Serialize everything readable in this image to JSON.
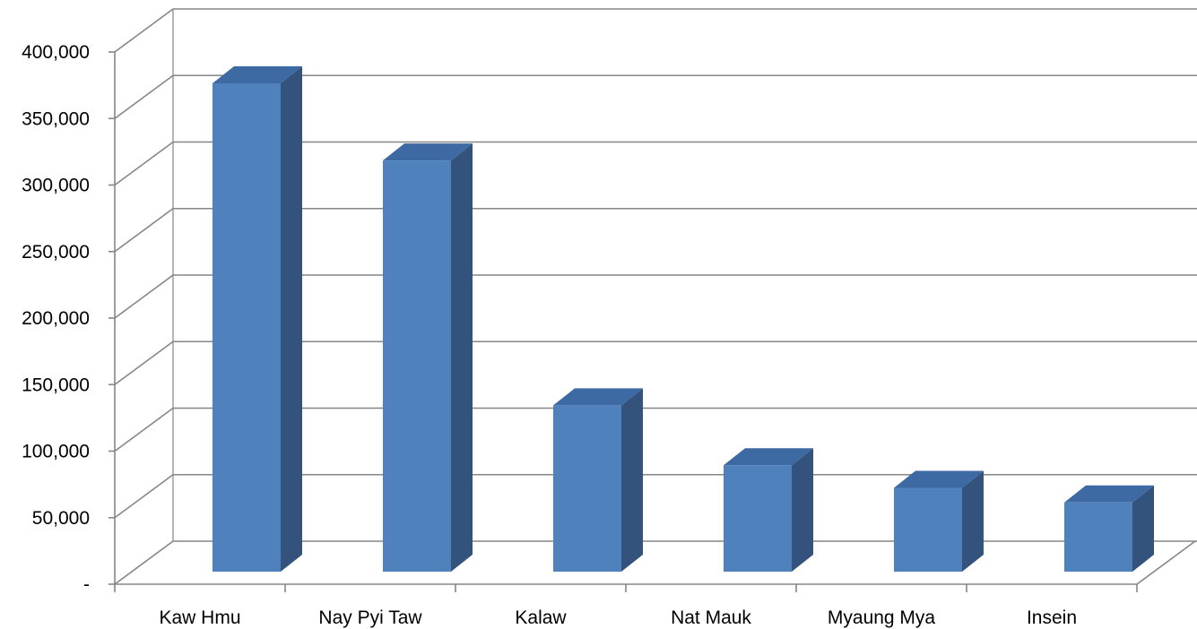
{
  "chart_data": {
    "type": "bar",
    "title": "",
    "xlabel": "",
    "ylabel": "",
    "categories": [
      "Kaw Hmu",
      "Nay Pyi Taw",
      "Kalaw",
      "Nat Mauk",
      "Myaung Mya",
      "Insein"
    ],
    "series": [
      {
        "values": [
          367000,
          309000,
          125000,
          80000,
          63000,
          52000
        ]
      }
    ],
    "ylim": [
      0,
      400000
    ],
    "y_ticks": [
      0,
      50000,
      100000,
      150000,
      200000,
      250000,
      300000,
      350000,
      400000
    ],
    "y_tick_labels": [
      "-",
      "50,000",
      "100,000",
      "150,000",
      "200,000",
      "250,000",
      "300,000",
      "350,000",
      "400,000"
    ],
    "grid": true,
    "legend": "none",
    "style": "3d-clustered-column",
    "colors": {
      "bar_front": "#4F81BD",
      "bar_side": "#33537C",
      "bar_top": "#3E6AA3",
      "gridline": "#868686",
      "axis": "#868686",
      "text": "#000000"
    }
  }
}
